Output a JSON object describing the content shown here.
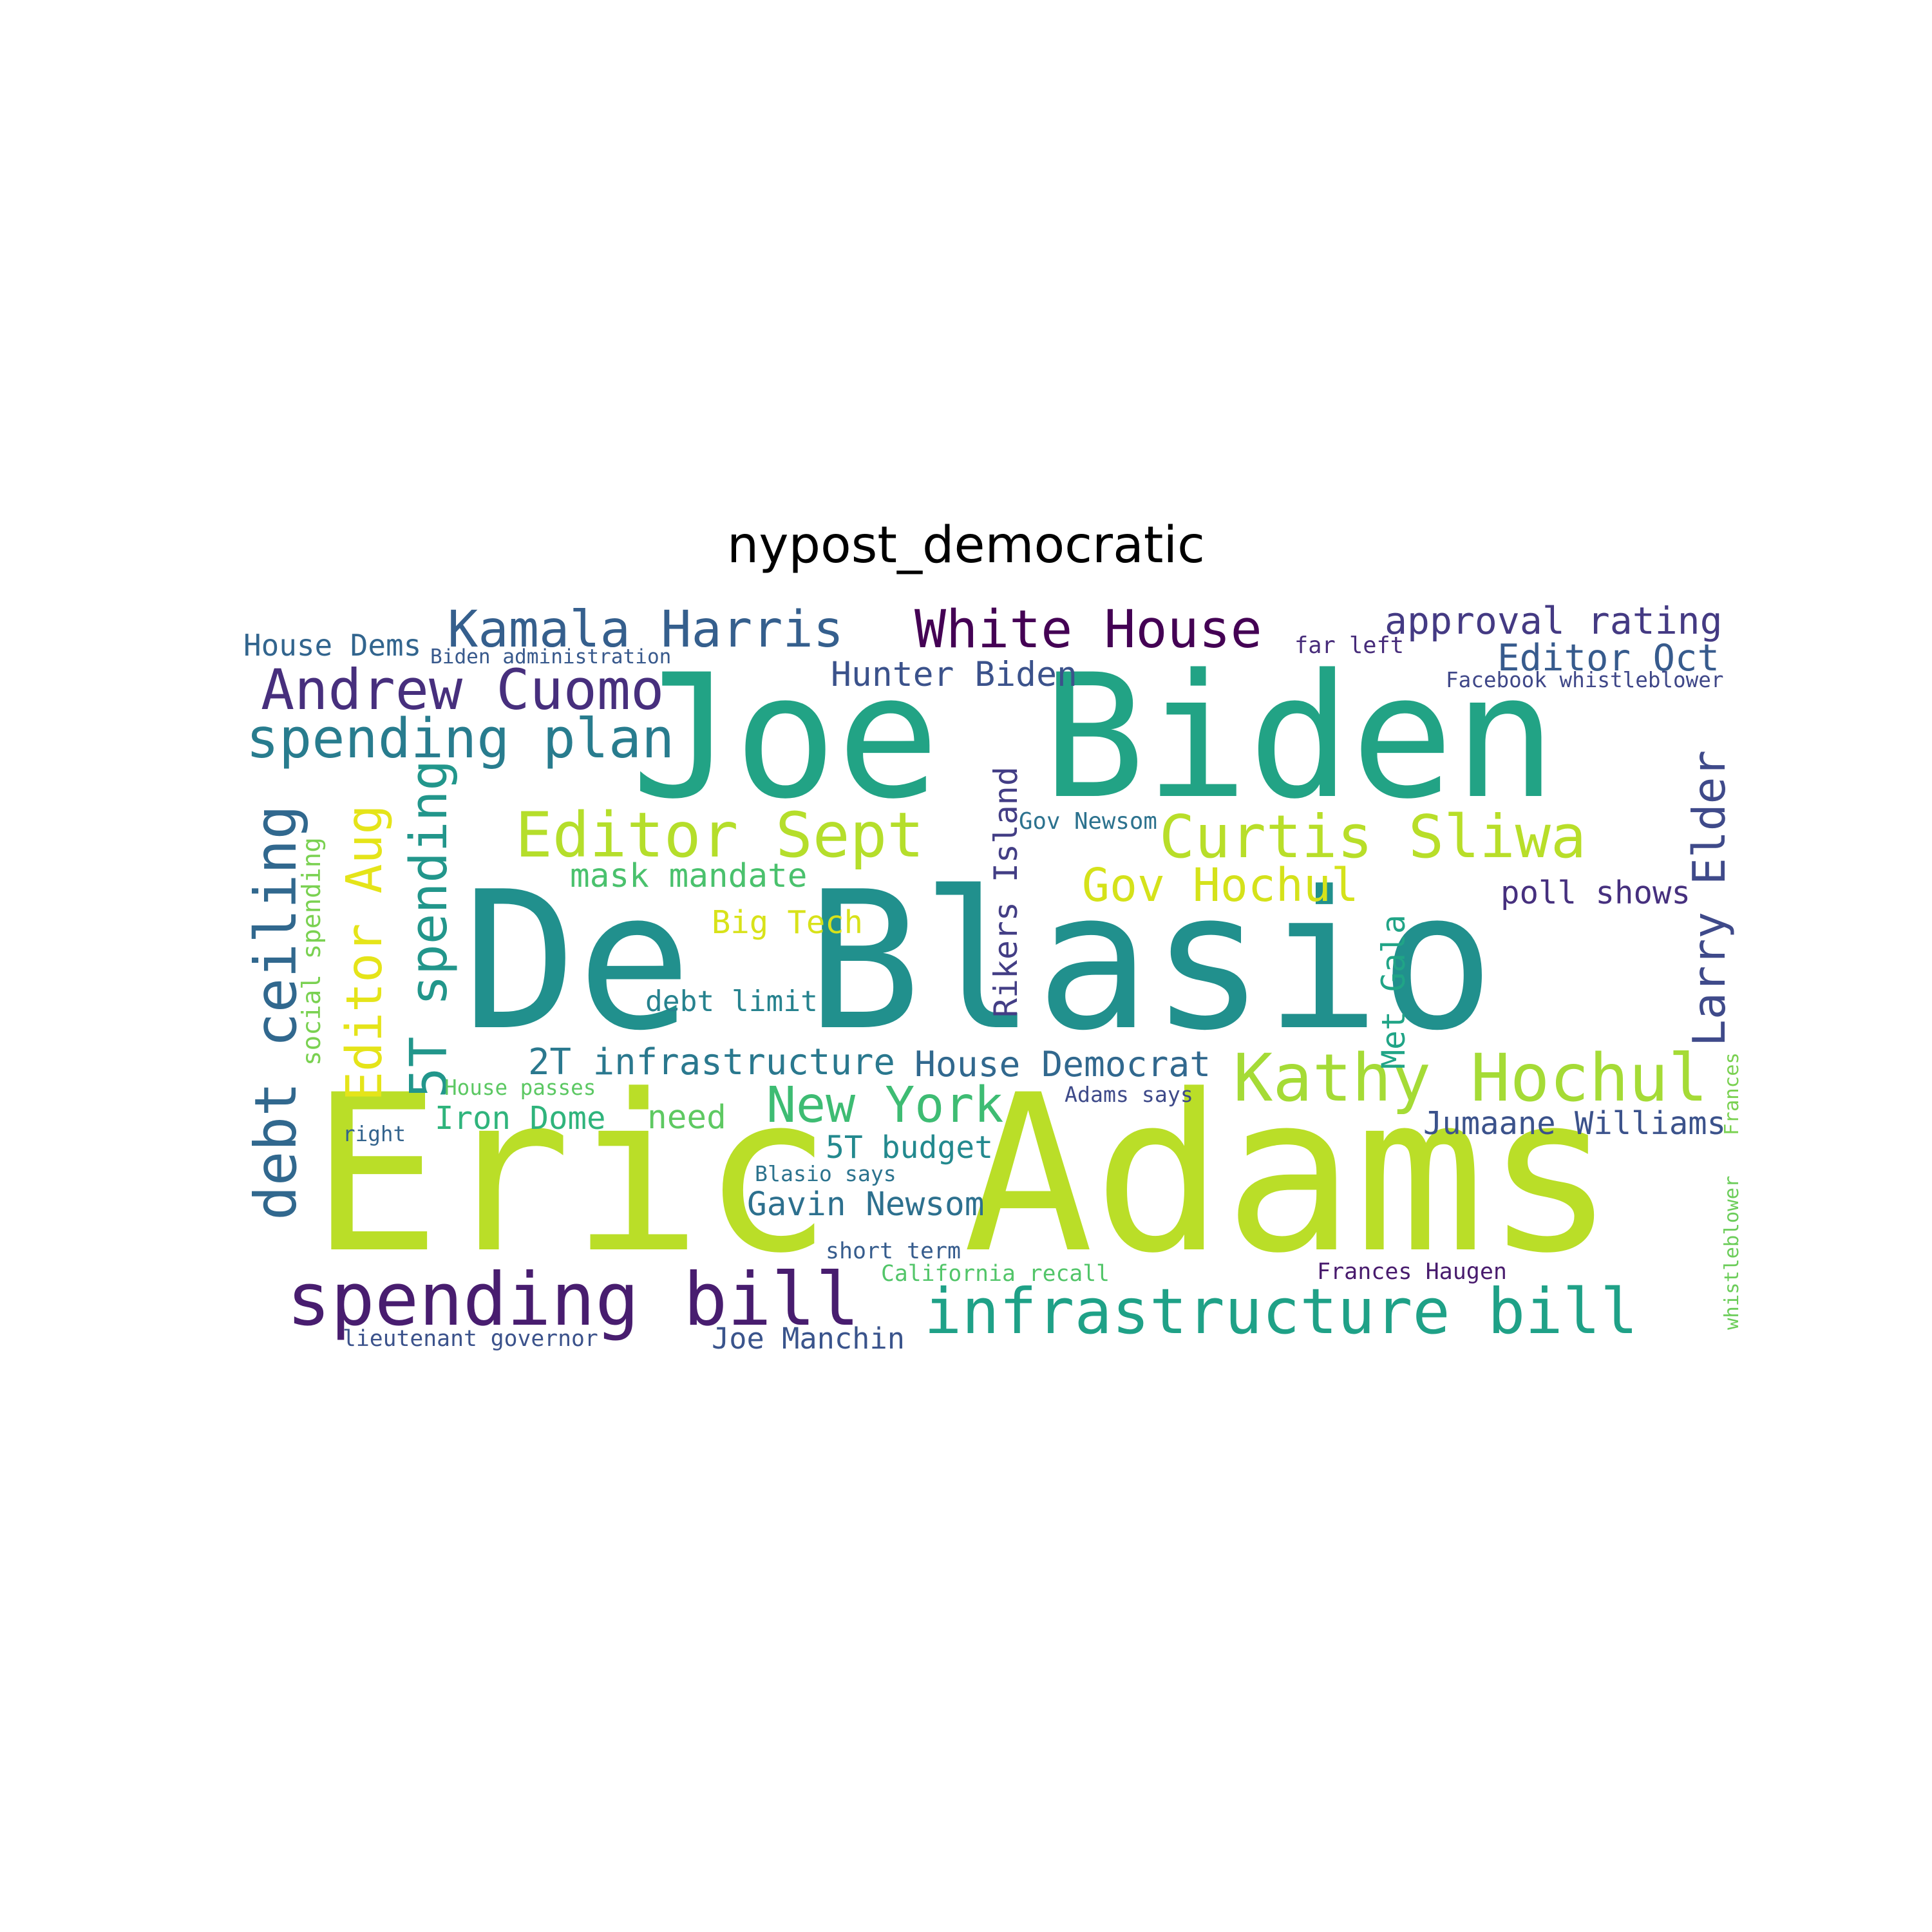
{
  "title": "nypost_democratic",
  "words": [
    {
      "text": "De Blasio",
      "color": "#21908d"
    },
    {
      "text": "Eric Adams",
      "color": "#bade28"
    },
    {
      "text": "Joe Biden",
      "color": "#22a385"
    },
    {
      "text": "infrastructure bill",
      "color": "#1fa187"
    },
    {
      "text": "spending bill",
      "color": "#481d6f"
    },
    {
      "text": "Kathy Hochul",
      "color": "#a5db36"
    },
    {
      "text": "Editor Sept",
      "color": "#b5de2b"
    },
    {
      "text": "Curtis Sliwa",
      "color": "#b8de29"
    },
    {
      "text": "Andrew Cuomo",
      "color": "#472f7d"
    },
    {
      "text": "Kamala Harris",
      "color": "#355f8d"
    },
    {
      "text": "White House",
      "color": "#440154"
    },
    {
      "text": "spending plan",
      "color": "#287c8e"
    },
    {
      "text": "debt ceiling",
      "color": "#31688e"
    },
    {
      "text": "5T spending",
      "color": "#22968b"
    },
    {
      "text": "Editor Aug",
      "color": "#e5e419"
    },
    {
      "text": "Larry Elder",
      "color": "#3f4a8a"
    },
    {
      "text": "New York",
      "color": "#3ebc73"
    },
    {
      "text": "Gov Hochul",
      "color": "#d5e21a"
    },
    {
      "text": "Rikers Island",
      "color": "#433e85"
    },
    {
      "text": "approval rating",
      "color": "#443a83"
    },
    {
      "text": "Editor Oct",
      "color": "#375b8d"
    },
    {
      "text": "Hunter Biden",
      "color": "#3b528b"
    },
    {
      "text": "2T infrastructure",
      "color": "#2a788e"
    },
    {
      "text": "House Democrat",
      "color": "#31688e"
    },
    {
      "text": "mask mandate",
      "color": "#4ac16d"
    },
    {
      "text": "Big Tech",
      "color": "#d8e219"
    },
    {
      "text": "poll shows",
      "color": "#46307e"
    },
    {
      "text": "Met Gala",
      "color": "#20a486"
    },
    {
      "text": "Jumaane Williams",
      "color": "#3b528b"
    },
    {
      "text": "Gavin Newsom",
      "color": "#2d708e"
    },
    {
      "text": "5T budget",
      "color": "#23898e"
    },
    {
      "text": "Iron Dome",
      "color": "#2fb47c"
    },
    {
      "text": "need",
      "color": "#5ec962"
    },
    {
      "text": "debt limit",
      "color": "#26828e"
    },
    {
      "text": "House Dems",
      "color": "#32658e"
    },
    {
      "text": "Joe Manchin",
      "color": "#3a548c"
    },
    {
      "text": "social spending",
      "color": "#7ad151"
    },
    {
      "text": "Frances Haugen",
      "color": "#481b6d"
    },
    {
      "text": "Gov Newsom",
      "color": "#2c728e"
    },
    {
      "text": "far left",
      "color": "#472c7a"
    },
    {
      "text": "Adams says",
      "color": "#3e4a89"
    },
    {
      "text": "short term",
      "color": "#365c8d"
    },
    {
      "text": "California recall",
      "color": "#52c569"
    },
    {
      "text": "Blasio says",
      "color": "#2c738e"
    },
    {
      "text": "Facebook whistleblower",
      "color": "#3f4788"
    },
    {
      "text": "Biden administration",
      "color": "#38598c"
    },
    {
      "text": "House passes",
      "color": "#5cc863"
    },
    {
      "text": "right",
      "color": "#33638d"
    },
    {
      "text": "lieutenant governor",
      "color": "#3b528b"
    },
    {
      "text": "Frances",
      "color": "#7ad151"
    },
    {
      "text": "whistleblower",
      "color": "#6ccd5a"
    }
  ]
}
